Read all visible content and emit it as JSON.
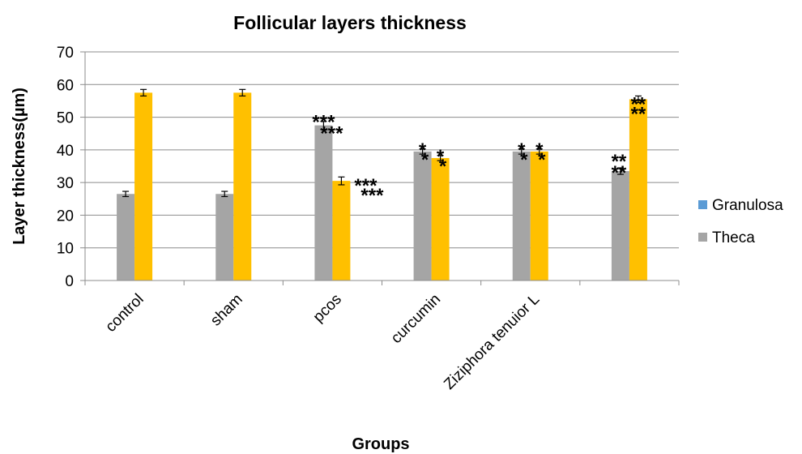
{
  "chart_data": {
    "type": "bar",
    "title": "Follicular layers thickness",
    "xlabel": "Groups",
    "ylabel": "Layer thickness(µm)",
    "ylim": [
      0,
      70
    ],
    "yticks": [
      0,
      10,
      20,
      30,
      40,
      50,
      60,
      70
    ],
    "grid": true,
    "legend_position": "right",
    "categories": [
      "control",
      "sham",
      "pcos",
      "curcumin",
      "Ziziphora tenuior L",
      ""
    ],
    "series": [
      {
        "name": "Granulosa",
        "color": "#5b9bd5",
        "values": [
          null,
          null,
          null,
          null,
          null,
          null
        ]
      },
      {
        "name": "Theca",
        "color": "#a5a5a5",
        "values": [
          26.5,
          26.5,
          47.5,
          39.5,
          39.5,
          33.5
        ],
        "error": [
          0.8,
          0.8,
          1.2,
          0.8,
          0.8,
          1.0
        ]
      },
      {
        "name": "",
        "color": "#ffc000",
        "values": [
          57.5,
          57.5,
          30.5,
          37.5,
          39.5,
          55.5
        ],
        "error": [
          1.0,
          1.0,
          1.2,
          0.8,
          0.8,
          1.0
        ]
      }
    ],
    "annotations": [
      {
        "category": 2,
        "series": 1,
        "text": "***"
      },
      {
        "category": 2,
        "series": 1,
        "text": "***"
      },
      {
        "category": 2,
        "series": 2,
        "text": "***"
      },
      {
        "category": 2,
        "series": 2,
        "text": "***"
      },
      {
        "category": 3,
        "series": 1,
        "text": "*"
      },
      {
        "category": 3,
        "series": 1,
        "text": "*"
      },
      {
        "category": 3,
        "series": 2,
        "text": "*"
      },
      {
        "category": 3,
        "series": 2,
        "text": "*"
      },
      {
        "category": 4,
        "series": 1,
        "text": "*"
      },
      {
        "category": 4,
        "series": 1,
        "text": "*"
      },
      {
        "category": 4,
        "series": 2,
        "text": "*"
      },
      {
        "category": 4,
        "series": 2,
        "text": "*"
      },
      {
        "category": 5,
        "series": 1,
        "text": "**"
      },
      {
        "category": 5,
        "series": 1,
        "text": "**"
      },
      {
        "category": 5,
        "series": 2,
        "text": "**"
      },
      {
        "category": 5,
        "series": 2,
        "text": "**"
      }
    ]
  }
}
